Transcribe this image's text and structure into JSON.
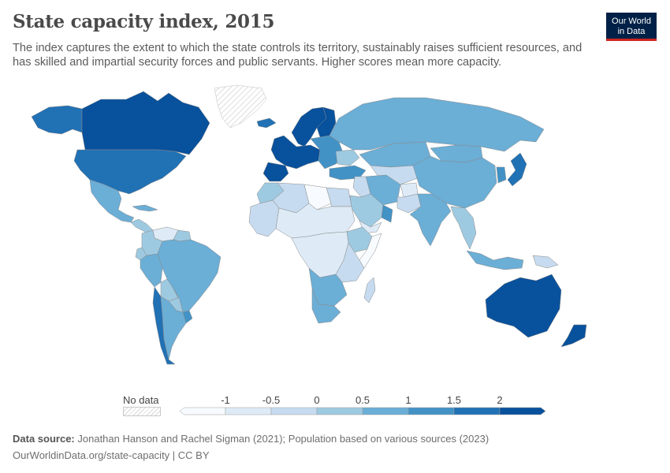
{
  "header": {
    "title": "State capacity index, 2015",
    "subtitle": "The index captures the extent to which the state controls its territory, sustainably raises sufficient resources, and has skilled and impartial security forces and public servants. Higher scores mean more capacity."
  },
  "logo": {
    "line1": "Our World",
    "line2": "in Data",
    "bg": "#002147",
    "accent": "#ce261e"
  },
  "legend": {
    "no_data_label": "No data",
    "ticks": [
      "-1",
      "-0.5",
      "0",
      "0.5",
      "1",
      "1.5",
      "2"
    ],
    "colors": [
      "#f7fbff",
      "#deebf7",
      "#c6dbef",
      "#9ecae1",
      "#6baed6",
      "#4292c6",
      "#2171b5",
      "#08519c"
    ]
  },
  "footer": {
    "source_label": "Data source:",
    "source_text": "Jonathan Hanson and Rachel Sigman (2021); Population based on various sources (2023)",
    "url": "OurWorldinData.org/state-capacity | CC BY"
  },
  "map": {
    "regions": [
      {
        "name": "Canada",
        "level": 7
      },
      {
        "name": "Alaska",
        "level": 6
      },
      {
        "name": "Greenland",
        "level": -1
      },
      {
        "name": "United States",
        "level": 6
      },
      {
        "name": "Mexico",
        "level": 4
      },
      {
        "name": "Central America",
        "level": 3
      },
      {
        "name": "Cuba",
        "level": 4
      },
      {
        "name": "Colombia",
        "level": 3
      },
      {
        "name": "Venezuela",
        "level": 1
      },
      {
        "name": "Guyana",
        "level": 3
      },
      {
        "name": "Ecuador",
        "level": 3
      },
      {
        "name": "Peru",
        "level": 4
      },
      {
        "name": "Brazil",
        "level": 4
      },
      {
        "name": "Bolivia",
        "level": 3
      },
      {
        "name": "Chile",
        "level": 6
      },
      {
        "name": "Argentina",
        "level": 4
      },
      {
        "name": "Paraguay",
        "level": 3
      },
      {
        "name": "Uruguay",
        "level": 5
      },
      {
        "name": "Iceland",
        "level": 6
      },
      {
        "name": "Scandinavia",
        "level": 7
      },
      {
        "name": "Finland",
        "level": 7
      },
      {
        "name": "Western Europe",
        "level": 7
      },
      {
        "name": "Spain",
        "level": 7
      },
      {
        "name": "Eastern Europe",
        "level": 5
      },
      {
        "name": "Ukraine",
        "level": 3
      },
      {
        "name": "Turkey",
        "level": 5
      },
      {
        "name": "Russia",
        "level": 4
      },
      {
        "name": "Kazakhstan",
        "level": 4
      },
      {
        "name": "Central Asia",
        "level": 2
      },
      {
        "name": "Iran",
        "level": 4
      },
      {
        "name": "Iraq",
        "level": 2
      },
      {
        "name": "Saudi Arabia",
        "level": 3
      },
      {
        "name": "Oman and UAE",
        "level": 5
      },
      {
        "name": "Yemen",
        "level": 1
      },
      {
        "name": "Afghanistan",
        "level": 1
      },
      {
        "name": "Pakistan",
        "level": 2
      },
      {
        "name": "India",
        "level": 4
      },
      {
        "name": "China",
        "level": 4
      },
      {
        "name": "Mongolia",
        "level": 4
      },
      {
        "name": "Japan",
        "level": 6
      },
      {
        "name": "Korea",
        "level": 5
      },
      {
        "name": "Southeast Asia",
        "level": 3
      },
      {
        "name": "Indonesia",
        "level": 4
      },
      {
        "name": "Papua New Guinea",
        "level": 2
      },
      {
        "name": "Australia",
        "level": 7
      },
      {
        "name": "New Zealand",
        "level": 7
      },
      {
        "name": "Morocco",
        "level": 3
      },
      {
        "name": "Algeria",
        "level": 2
      },
      {
        "name": "Libya",
        "level": 0
      },
      {
        "name": "Egypt",
        "level": 2
      },
      {
        "name": "West Africa",
        "level": 2
      },
      {
        "name": "Sahel",
        "level": 1
      },
      {
        "name": "Central Africa",
        "level": 1
      },
      {
        "name": "East Africa",
        "level": 2
      },
      {
        "name": "Ethiopia",
        "level": 3
      },
      {
        "name": "Somalia",
        "level": 0
      },
      {
        "name": "Southern Africa",
        "level": 4
      },
      {
        "name": "South Africa",
        "level": 4
      },
      {
        "name": "Madagascar",
        "level": 2
      }
    ]
  }
}
